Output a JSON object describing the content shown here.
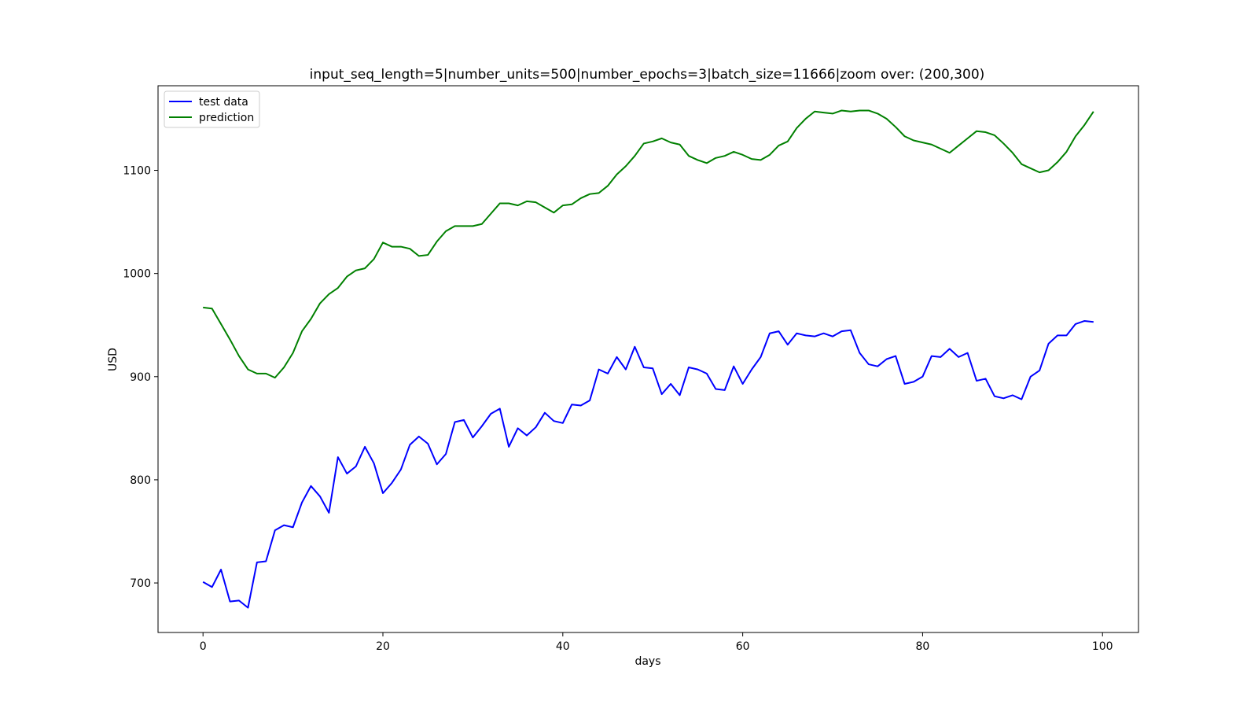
{
  "chart_data": {
    "type": "line",
    "title": "input_seq_length=5|number_units=500|number_epochs=3|batch_size=11666|zoom over: (200,300)",
    "xlabel": "days",
    "ylabel": "USD",
    "xlim": [
      -5,
      104
    ],
    "ylim": [
      652,
      1182
    ],
    "xticks": [
      0,
      20,
      40,
      60,
      80,
      100
    ],
    "yticks": [
      700,
      800,
      900,
      1000,
      1100
    ],
    "xtick_labels": [
      "0",
      "20",
      "40",
      "60",
      "80",
      "100"
    ],
    "ytick_labels": [
      "700",
      "800",
      "900",
      "1000",
      "1100"
    ],
    "grid": false,
    "legend": "top-left",
    "series": [
      {
        "name": "test data",
        "color": "#0000ff",
        "values": [
          701,
          696,
          713,
          682,
          683,
          676,
          720,
          721,
          751,
          756,
          754,
          778,
          794,
          784,
          768,
          822,
          806,
          813,
          832,
          816,
          787,
          797,
          810,
          834,
          842,
          835,
          815,
          825,
          856,
          858,
          841,
          852,
          864,
          869,
          832,
          850,
          843,
          851,
          865,
          857,
          855,
          873,
          872,
          877,
          907,
          903,
          919,
          907,
          929,
          909,
          908,
          883,
          893,
          882,
          909,
          907,
          903,
          888,
          887,
          910,
          893,
          907,
          919,
          942,
          944,
          931,
          942,
          940,
          939,
          942,
          939,
          944,
          945,
          923,
          912,
          910,
          917,
          920,
          893,
          895,
          900,
          920,
          919,
          927,
          919,
          923,
          896,
          898,
          881,
          879,
          882,
          878,
          900,
          906,
          932,
          940,
          940,
          951,
          954,
          953
        ]
      },
      {
        "name": "prediction",
        "color": "#008000",
        "values": [
          967,
          966,
          951,
          936,
          920,
          907,
          903,
          903,
          899,
          909,
          923,
          944,
          956,
          971,
          980,
          986,
          997,
          1003,
          1005,
          1014,
          1030,
          1026,
          1026,
          1024,
          1017,
          1018,
          1031,
          1041,
          1046,
          1046,
          1046,
          1048,
          1058,
          1068,
          1068,
          1066,
          1070,
          1069,
          1064,
          1059,
          1066,
          1067,
          1073,
          1077,
          1078,
          1085,
          1096,
          1104,
          1114,
          1126,
          1128,
          1131,
          1127,
          1125,
          1114,
          1110,
          1107,
          1112,
          1114,
          1118,
          1115,
          1111,
          1110,
          1115,
          1124,
          1128,
          1141,
          1150,
          1157,
          1156,
          1155,
          1158,
          1157,
          1158,
          1158,
          1155,
          1150,
          1142,
          1133,
          1129,
          1127,
          1125,
          1121,
          1117,
          1124,
          1131,
          1138,
          1137,
          1134,
          1126,
          1117,
          1106,
          1102,
          1098,
          1100,
          1108,
          1118,
          1133,
          1144,
          1157
        ]
      }
    ]
  }
}
